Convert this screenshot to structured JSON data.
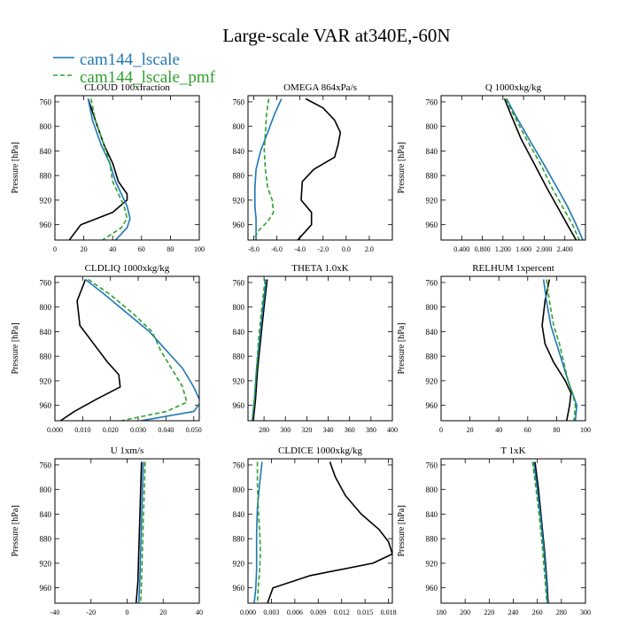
{
  "figure": {
    "title": "Large-scale VAR at340E,-60N",
    "legend": [
      {
        "label": "cam144_lscale",
        "color": "#1f77b4",
        "dash": "solid"
      },
      {
        "label": "cam144_lscale_pmf",
        "color": "#2ca02c",
        "dash": "dashed"
      }
    ],
    "obs_color": "#000000"
  },
  "chart_data": [
    {
      "type": "line",
      "title": "CLOUD  100xfraction",
      "ylabel": "Pressure [hPa]",
      "xlim": [
        0,
        100
      ],
      "ylim": [
        985,
        750
      ],
      "xticks": [
        0,
        20,
        40,
        60,
        80,
        100
      ],
      "xticklabels": [
        "0",
        "20",
        "40",
        "60",
        "80",
        "100"
      ],
      "yticks": [
        760,
        800,
        840,
        880,
        920,
        960
      ],
      "series": [
        {
          "color": "#000000",
          "x": [
            23,
            28,
            34,
            40,
            44,
            50,
            50,
            40,
            18,
            10
          ],
          "y": [
            755,
            790,
            830,
            860,
            890,
            910,
            920,
            940,
            960,
            985
          ]
        },
        {
          "color": "#1f77b4",
          "x": [
            23,
            26,
            32,
            38,
            42,
            46,
            50,
            52,
            50,
            42
          ],
          "y": [
            755,
            790,
            830,
            860,
            890,
            910,
            930,
            950,
            965,
            985
          ]
        },
        {
          "color": "#2ca02c",
          "dash": true,
          "x": [
            25,
            28,
            34,
            38,
            40,
            44,
            48,
            50,
            46,
            33
          ],
          "y": [
            755,
            790,
            830,
            860,
            890,
            910,
            930,
            950,
            965,
            985
          ]
        }
      ]
    },
    {
      "type": "line",
      "title": "OMEGA  864xPa/s",
      "ylabel": "",
      "xlim": [
        -8.5,
        4.0
      ],
      "ylim": [
        985,
        750
      ],
      "xticks": [
        -8,
        -6,
        -4,
        -2,
        0,
        2
      ],
      "xticklabels": [
        "-8.0",
        "-6.0",
        "-4.0",
        "-2.0",
        "0.0",
        "2.0"
      ],
      "yticks": [
        760,
        800,
        840,
        880,
        920,
        960
      ],
      "series": [
        {
          "color": "#000000",
          "x": [
            -3.5,
            -2.0,
            -1.0,
            -0.5,
            -0.7,
            -1.0,
            -2.8,
            -3.8,
            -3.9,
            -3.0,
            -3.0,
            -4.2
          ],
          "y": [
            755,
            770,
            790,
            810,
            830,
            850,
            870,
            890,
            920,
            940,
            960,
            985
          ]
        },
        {
          "color": "#1f77b4",
          "x": [
            -5.6,
            -6.2,
            -6.8,
            -7.4,
            -7.8,
            -7.9,
            -7.9,
            -7.8,
            -7.8,
            -7.8
          ],
          "y": [
            755,
            780,
            810,
            840,
            870,
            900,
            930,
            950,
            970,
            985
          ]
        },
        {
          "color": "#2ca02c",
          "dash": true,
          "x": [
            -6.7,
            -6.9,
            -7.0,
            -7.1,
            -7.0,
            -6.8,
            -6.4,
            -6.3,
            -6.8,
            -7.6,
            -8.0
          ],
          "y": [
            755,
            780,
            810,
            840,
            870,
            900,
            920,
            940,
            955,
            970,
            985
          ]
        }
      ]
    },
    {
      "type": "line",
      "title": "Q  1000xkg/kg",
      "ylabel": "Pressure [hPa]",
      "xlim": [
        0.0,
        2.8
      ],
      "ylim": [
        985,
        750
      ],
      "xticks": [
        0.4,
        0.8,
        1.2,
        1.6,
        2.0,
        2.4
      ],
      "xticklabels": [
        "0.400",
        "0.800",
        "1.200",
        "1.600",
        "2.000",
        "2.400"
      ],
      "yticks": [
        760,
        800,
        840,
        880,
        920,
        960
      ],
      "series": [
        {
          "color": "#000000",
          "x": [
            1.23,
            1.35,
            1.55,
            1.8,
            2.05,
            2.25,
            2.45,
            2.62
          ],
          "y": [
            755,
            780,
            820,
            860,
            900,
            930,
            960,
            985
          ]
        },
        {
          "color": "#1f77b4",
          "x": [
            1.27,
            1.43,
            1.7,
            1.98,
            2.25,
            2.45,
            2.62,
            2.75
          ],
          "y": [
            755,
            780,
            820,
            860,
            900,
            930,
            960,
            985
          ]
        },
        {
          "color": "#2ca02c",
          "dash": true,
          "x": [
            1.25,
            1.4,
            1.65,
            1.92,
            2.15,
            2.35,
            2.55,
            2.68
          ],
          "y": [
            755,
            780,
            820,
            860,
            900,
            930,
            960,
            985
          ]
        }
      ]
    },
    {
      "type": "line",
      "title": "CLDLIQ  1000xkg/kg",
      "ylabel": "Pressure [hPa]",
      "xlim": [
        0.0,
        0.052
      ],
      "ylim": [
        985,
        750
      ],
      "xticks": [
        0.0,
        0.01,
        0.02,
        0.03,
        0.04,
        0.05
      ],
      "xticklabels": [
        "0.000",
        "0.010",
        "0.020",
        "0.030",
        "0.040",
        "0.050"
      ],
      "yticks": [
        760,
        800,
        840,
        880,
        920,
        960
      ],
      "series": [
        {
          "color": "#000000",
          "x": [
            0.011,
            0.008,
            0.009,
            0.014,
            0.019,
            0.023,
            0.0235,
            0.015,
            0.007,
            0.002
          ],
          "y": [
            755,
            790,
            830,
            860,
            890,
            910,
            930,
            950,
            970,
            985
          ]
        },
        {
          "color": "#1f77b4",
          "x": [
            0.011,
            0.018,
            0.026,
            0.034,
            0.04,
            0.046,
            0.05,
            0.0525,
            0.05,
            0.031
          ],
          "y": [
            755,
            780,
            810,
            840,
            870,
            900,
            930,
            955,
            970,
            985
          ]
        },
        {
          "color": "#2ca02c",
          "dash": true,
          "x": [
            0.012,
            0.02,
            0.028,
            0.035,
            0.038,
            0.042,
            0.046,
            0.0475,
            0.04,
            0.024
          ],
          "y": [
            755,
            780,
            810,
            840,
            870,
            900,
            930,
            955,
            970,
            985
          ]
        }
      ]
    },
    {
      "type": "line",
      "title": "THETA  1.0xK",
      "ylabel": "",
      "xlim": [
        265,
        400
      ],
      "ylim": [
        985,
        750
      ],
      "xticks": [
        280,
        300,
        320,
        340,
        360,
        380,
        400
      ],
      "xticklabels": [
        "280",
        "300",
        "320",
        "340",
        "360",
        "380",
        "400"
      ],
      "yticks": [
        760,
        800,
        840,
        880,
        920,
        960
      ],
      "series": [
        {
          "color": "#000000",
          "x": [
            283,
            280,
            277,
            274,
            272,
            270
          ],
          "y": [
            755,
            800,
            850,
            900,
            950,
            985
          ]
        },
        {
          "color": "#1f77b4",
          "x": [
            282,
            279,
            276,
            273,
            271,
            269
          ],
          "y": [
            755,
            800,
            850,
            900,
            950,
            985
          ]
        },
        {
          "color": "#2ca02c",
          "dash": true,
          "x": [
            281,
            278,
            275,
            273,
            271,
            269
          ],
          "y": [
            755,
            800,
            850,
            900,
            950,
            985
          ]
        }
      ]
    },
    {
      "type": "line",
      "title": "RELHUM  1xpercent",
      "ylabel": "Pressure [hPa]",
      "xlim": [
        0,
        100
      ],
      "ylim": [
        985,
        750
      ],
      "xticks": [
        0,
        20,
        40,
        60,
        80,
        100
      ],
      "xticklabels": [
        "0",
        "20",
        "40",
        "60",
        "80",
        "100"
      ],
      "yticks": [
        760,
        800,
        840,
        880,
        920,
        960
      ],
      "series": [
        {
          "color": "#000000",
          "x": [
            75,
            72,
            70,
            72,
            78,
            86,
            90,
            89,
            87
          ],
          "y": [
            755,
            790,
            830,
            860,
            890,
            920,
            940,
            960,
            985
          ]
        },
        {
          "color": "#1f77b4",
          "x": [
            71,
            73,
            76,
            80,
            84,
            88,
            91,
            94,
            93
          ],
          "y": [
            755,
            790,
            830,
            860,
            890,
            920,
            940,
            960,
            985
          ]
        },
        {
          "color": "#2ca02c",
          "dash": true,
          "x": [
            73,
            75,
            78,
            82,
            85,
            88,
            91,
            93,
            92
          ],
          "y": [
            755,
            790,
            830,
            860,
            890,
            920,
            940,
            960,
            985
          ]
        }
      ]
    },
    {
      "type": "line",
      "title": "U  1xm/s",
      "ylabel": "Pressure [hPa]",
      "xlim": [
        -40,
        40
      ],
      "ylim": [
        985,
        750
      ],
      "xticks": [
        -40,
        -20,
        0,
        20,
        40
      ],
      "xticklabels": [
        "-40",
        "-20",
        "0",
        "20",
        "40"
      ],
      "yticks": [
        760,
        800,
        840,
        880,
        920,
        960
      ],
      "series": [
        {
          "color": "#000000",
          "x": [
            8,
            7.5,
            7,
            6.5,
            6,
            5
          ],
          "y": [
            755,
            800,
            850,
            900,
            950,
            985
          ]
        },
        {
          "color": "#1f77b4",
          "x": [
            9,
            8.5,
            8,
            7.5,
            7,
            6.5
          ],
          "y": [
            755,
            800,
            850,
            900,
            950,
            985
          ]
        },
        {
          "color": "#2ca02c",
          "dash": true,
          "x": [
            10,
            9.5,
            9,
            8.5,
            8,
            7.5
          ],
          "y": [
            755,
            800,
            850,
            900,
            950,
            985
          ]
        }
      ]
    },
    {
      "type": "line",
      "title": "CLDICE  1000xkg/kg",
      "ylabel": "",
      "xlim": [
        0.0,
        0.0185
      ],
      "ylim": [
        985,
        750
      ],
      "xticks": [
        0.0,
        0.003,
        0.006,
        0.009,
        0.012,
        0.015,
        0.018
      ],
      "xticklabels": [
        "0.000",
        "0.003",
        "0.006",
        "0.009",
        "0.012",
        "0.015",
        "0.018"
      ],
      "yticks": [
        760,
        800,
        840,
        880,
        920,
        960
      ],
      "series": [
        {
          "color": "#000000",
          "x": [
            0.0105,
            0.0112,
            0.0125,
            0.0145,
            0.0168,
            0.018,
            0.0185,
            0.016,
            0.008,
            0.0032,
            0.0025
          ],
          "y": [
            755,
            780,
            810,
            840,
            865,
            885,
            905,
            920,
            940,
            960,
            985
          ]
        },
        {
          "color": "#1f77b4",
          "x": [
            0.0018,
            0.0015,
            0.0012,
            0.0011,
            0.0011,
            0.0011,
            0.001,
            0.0008
          ],
          "y": [
            755,
            790,
            830,
            870,
            900,
            930,
            960,
            985
          ]
        },
        {
          "color": "#2ca02c",
          "dash": true,
          "x": [
            0.0012,
            0.0012,
            0.0013,
            0.0015,
            0.0016,
            0.0015,
            0.0013,
            0.0012
          ],
          "y": [
            755,
            790,
            830,
            870,
            900,
            930,
            960,
            985
          ]
        }
      ]
    },
    {
      "type": "line",
      "title": "T  1xK",
      "ylabel": "Pressure [hPa]",
      "xlim": [
        180,
        300
      ],
      "ylim": [
        985,
        750
      ],
      "xticks": [
        180,
        200,
        220,
        240,
        260,
        280,
        300
      ],
      "xticklabels": [
        "180",
        "200",
        "220",
        "240",
        "260",
        "280",
        "300"
      ],
      "yticks": [
        760,
        800,
        840,
        880,
        920,
        960
      ],
      "series": [
        {
          "color": "#000000",
          "x": [
            258,
            261,
            263.5,
            266,
            268,
            269
          ],
          "y": [
            755,
            800,
            850,
            900,
            950,
            985
          ]
        },
        {
          "color": "#1f77b4",
          "x": [
            257,
            260,
            263,
            265.5,
            267.5,
            268.5
          ],
          "y": [
            755,
            800,
            850,
            900,
            950,
            985
          ]
        },
        {
          "color": "#2ca02c",
          "dash": true,
          "x": [
            256,
            259,
            262,
            264.5,
            266.5,
            268
          ],
          "y": [
            755,
            800,
            850,
            900,
            950,
            985
          ]
        }
      ]
    }
  ]
}
